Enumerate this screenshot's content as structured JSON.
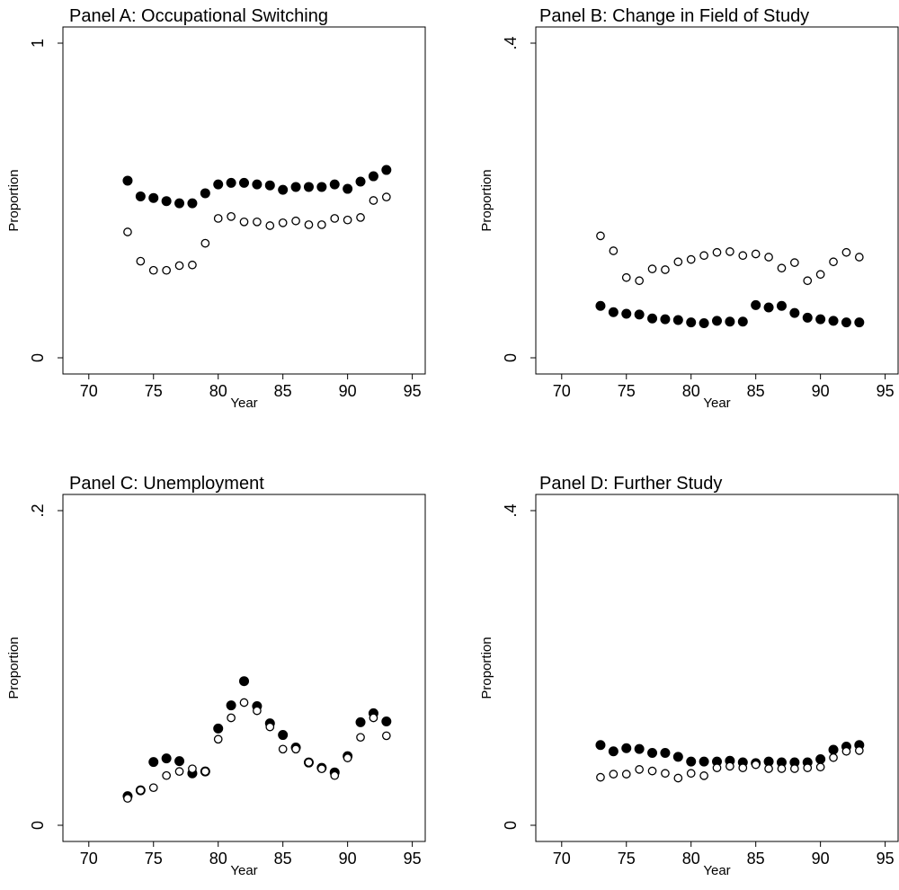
{
  "chart_data": [
    {
      "type": "scatter",
      "title": "Panel A: Occupational Switching",
      "xlabel": "Year",
      "ylabel": "Proportion",
      "xlim": [
        68,
        96
      ],
      "ylim": [
        0,
        1
      ],
      "xticks": [
        70,
        75,
        80,
        85,
        90,
        95
      ],
      "xtick_labels": [
        "70",
        "75",
        "80",
        "85",
        "90",
        "95"
      ],
      "yticks": [
        0,
        1
      ],
      "ytick_labels": [
        "0",
        "1"
      ],
      "x": [
        73,
        74,
        75,
        76,
        77,
        78,
        79,
        80,
        81,
        82,
        83,
        84,
        85,
        86,
        87,
        88,
        89,
        90,
        91,
        92,
        93
      ],
      "series": [
        {
          "marker": "filled",
          "values": [
            0.563,
            0.513,
            0.508,
            0.498,
            0.491,
            0.491,
            0.523,
            0.551,
            0.556,
            0.556,
            0.551,
            0.548,
            0.534,
            0.543,
            0.543,
            0.543,
            0.551,
            0.537,
            0.56,
            0.577,
            0.597
          ]
        },
        {
          "marker": "hollow",
          "values": [
            0.4,
            0.307,
            0.278,
            0.278,
            0.293,
            0.295,
            0.364,
            0.443,
            0.449,
            0.432,
            0.432,
            0.42,
            0.429,
            0.435,
            0.423,
            0.423,
            0.443,
            0.438,
            0.446,
            0.5,
            0.511
          ]
        }
      ]
    },
    {
      "type": "scatter",
      "title": "Panel B: Change in Field of Study",
      "xlabel": "Year",
      "ylabel": "Proportion",
      "xlim": [
        68,
        96
      ],
      "ylim": [
        0,
        0.4
      ],
      "xticks": [
        70,
        75,
        80,
        85,
        90,
        95
      ],
      "xtick_labels": [
        "70",
        "75",
        "80",
        "85",
        "90",
        "95"
      ],
      "yticks": [
        0,
        0.4
      ],
      "ytick_labels": [
        "0",
        ".4"
      ],
      "x": [
        73,
        74,
        75,
        76,
        77,
        78,
        79,
        80,
        81,
        82,
        83,
        84,
        85,
        86,
        87,
        88,
        89,
        90,
        91,
        92,
        93
      ],
      "series": [
        {
          "marker": "filled",
          "values": [
            0.066,
            0.058,
            0.056,
            0.055,
            0.05,
            0.049,
            0.048,
            0.045,
            0.044,
            0.047,
            0.046,
            0.046,
            0.067,
            0.064,
            0.066,
            0.057,
            0.051,
            0.049,
            0.047,
            0.045,
            0.045
          ]
        },
        {
          "marker": "hollow",
          "values": [
            0.155,
            0.136,
            0.102,
            0.098,
            0.113,
            0.112,
            0.122,
            0.125,
            0.13,
            0.134,
            0.135,
            0.13,
            0.132,
            0.128,
            0.114,
            0.121,
            0.098,
            0.106,
            0.122,
            0.134,
            0.128
          ]
        }
      ]
    },
    {
      "type": "scatter",
      "title": "Panel C: Unemployment",
      "xlabel": "Year",
      "ylabel": "Proportion",
      "xlim": [
        68,
        96
      ],
      "ylim": [
        0,
        0.2
      ],
      "xticks": [
        70,
        75,
        80,
        85,
        90,
        95
      ],
      "xtick_labels": [
        "70",
        "75",
        "80",
        "85",
        "90",
        "95"
      ],
      "yticks": [
        0,
        0.2
      ],
      "ytick_labels": [
        "0",
        ".2"
      ],
      "x": [
        73,
        74,
        75,
        76,
        77,
        78,
        79,
        80,
        81,
        82,
        83,
        84,
        85,
        86,
        87,
        88,
        89,
        90,
        91,
        92,
        93
      ],
      "series": [
        {
          "marker": "filled",
          "values": [
            0.0185,
            0.0222,
            0.0402,
            0.0425,
            0.0408,
            0.033,
            0.0342,
            0.0615,
            0.0762,
            0.0916,
            0.0757,
            0.0648,
            0.0574,
            0.0494,
            0.0399,
            0.0365,
            0.0336,
            0.0439,
            0.0655,
            0.0712,
            0.066
          ]
        },
        {
          "marker": "hollow",
          "values": [
            0.0171,
            0.0222,
            0.0239,
            0.0316,
            0.0342,
            0.0359,
            0.0342,
            0.0547,
            0.0683,
            0.078,
            0.0728,
            0.0625,
            0.0484,
            0.0484,
            0.0399,
            0.0359,
            0.0316,
            0.0428,
            0.0559,
            0.0683,
            0.0569
          ]
        }
      ]
    },
    {
      "type": "scatter",
      "title": "Panel D: Further Study",
      "xlabel": "Year",
      "ylabel": "Proportion",
      "xlim": [
        68,
        96
      ],
      "ylim": [
        0,
        0.4
      ],
      "xticks": [
        70,
        75,
        80,
        85,
        90,
        95
      ],
      "xtick_labels": [
        "70",
        "75",
        "80",
        "85",
        "90",
        "95"
      ],
      "yticks": [
        0,
        0.4
      ],
      "ytick_labels": [
        "0",
        ".4"
      ],
      "x": [
        73,
        74,
        75,
        76,
        77,
        78,
        79,
        80,
        81,
        82,
        83,
        84,
        85,
        86,
        87,
        88,
        89,
        90,
        91,
        92,
        93
      ],
      "series": [
        {
          "marker": "filled",
          "values": [
            0.102,
            0.094,
            0.098,
            0.097,
            0.092,
            0.092,
            0.087,
            0.081,
            0.081,
            0.081,
            0.082,
            0.08,
            0.079,
            0.081,
            0.08,
            0.08,
            0.08,
            0.084,
            0.096,
            0.1,
            0.102
          ]
        },
        {
          "marker": "hollow",
          "values": [
            0.061,
            0.065,
            0.065,
            0.071,
            0.069,
            0.066,
            0.06,
            0.066,
            0.063,
            0.073,
            0.075,
            0.073,
            0.077,
            0.072,
            0.072,
            0.072,
            0.073,
            0.074,
            0.086,
            0.094,
            0.095
          ]
        }
      ]
    }
  ]
}
